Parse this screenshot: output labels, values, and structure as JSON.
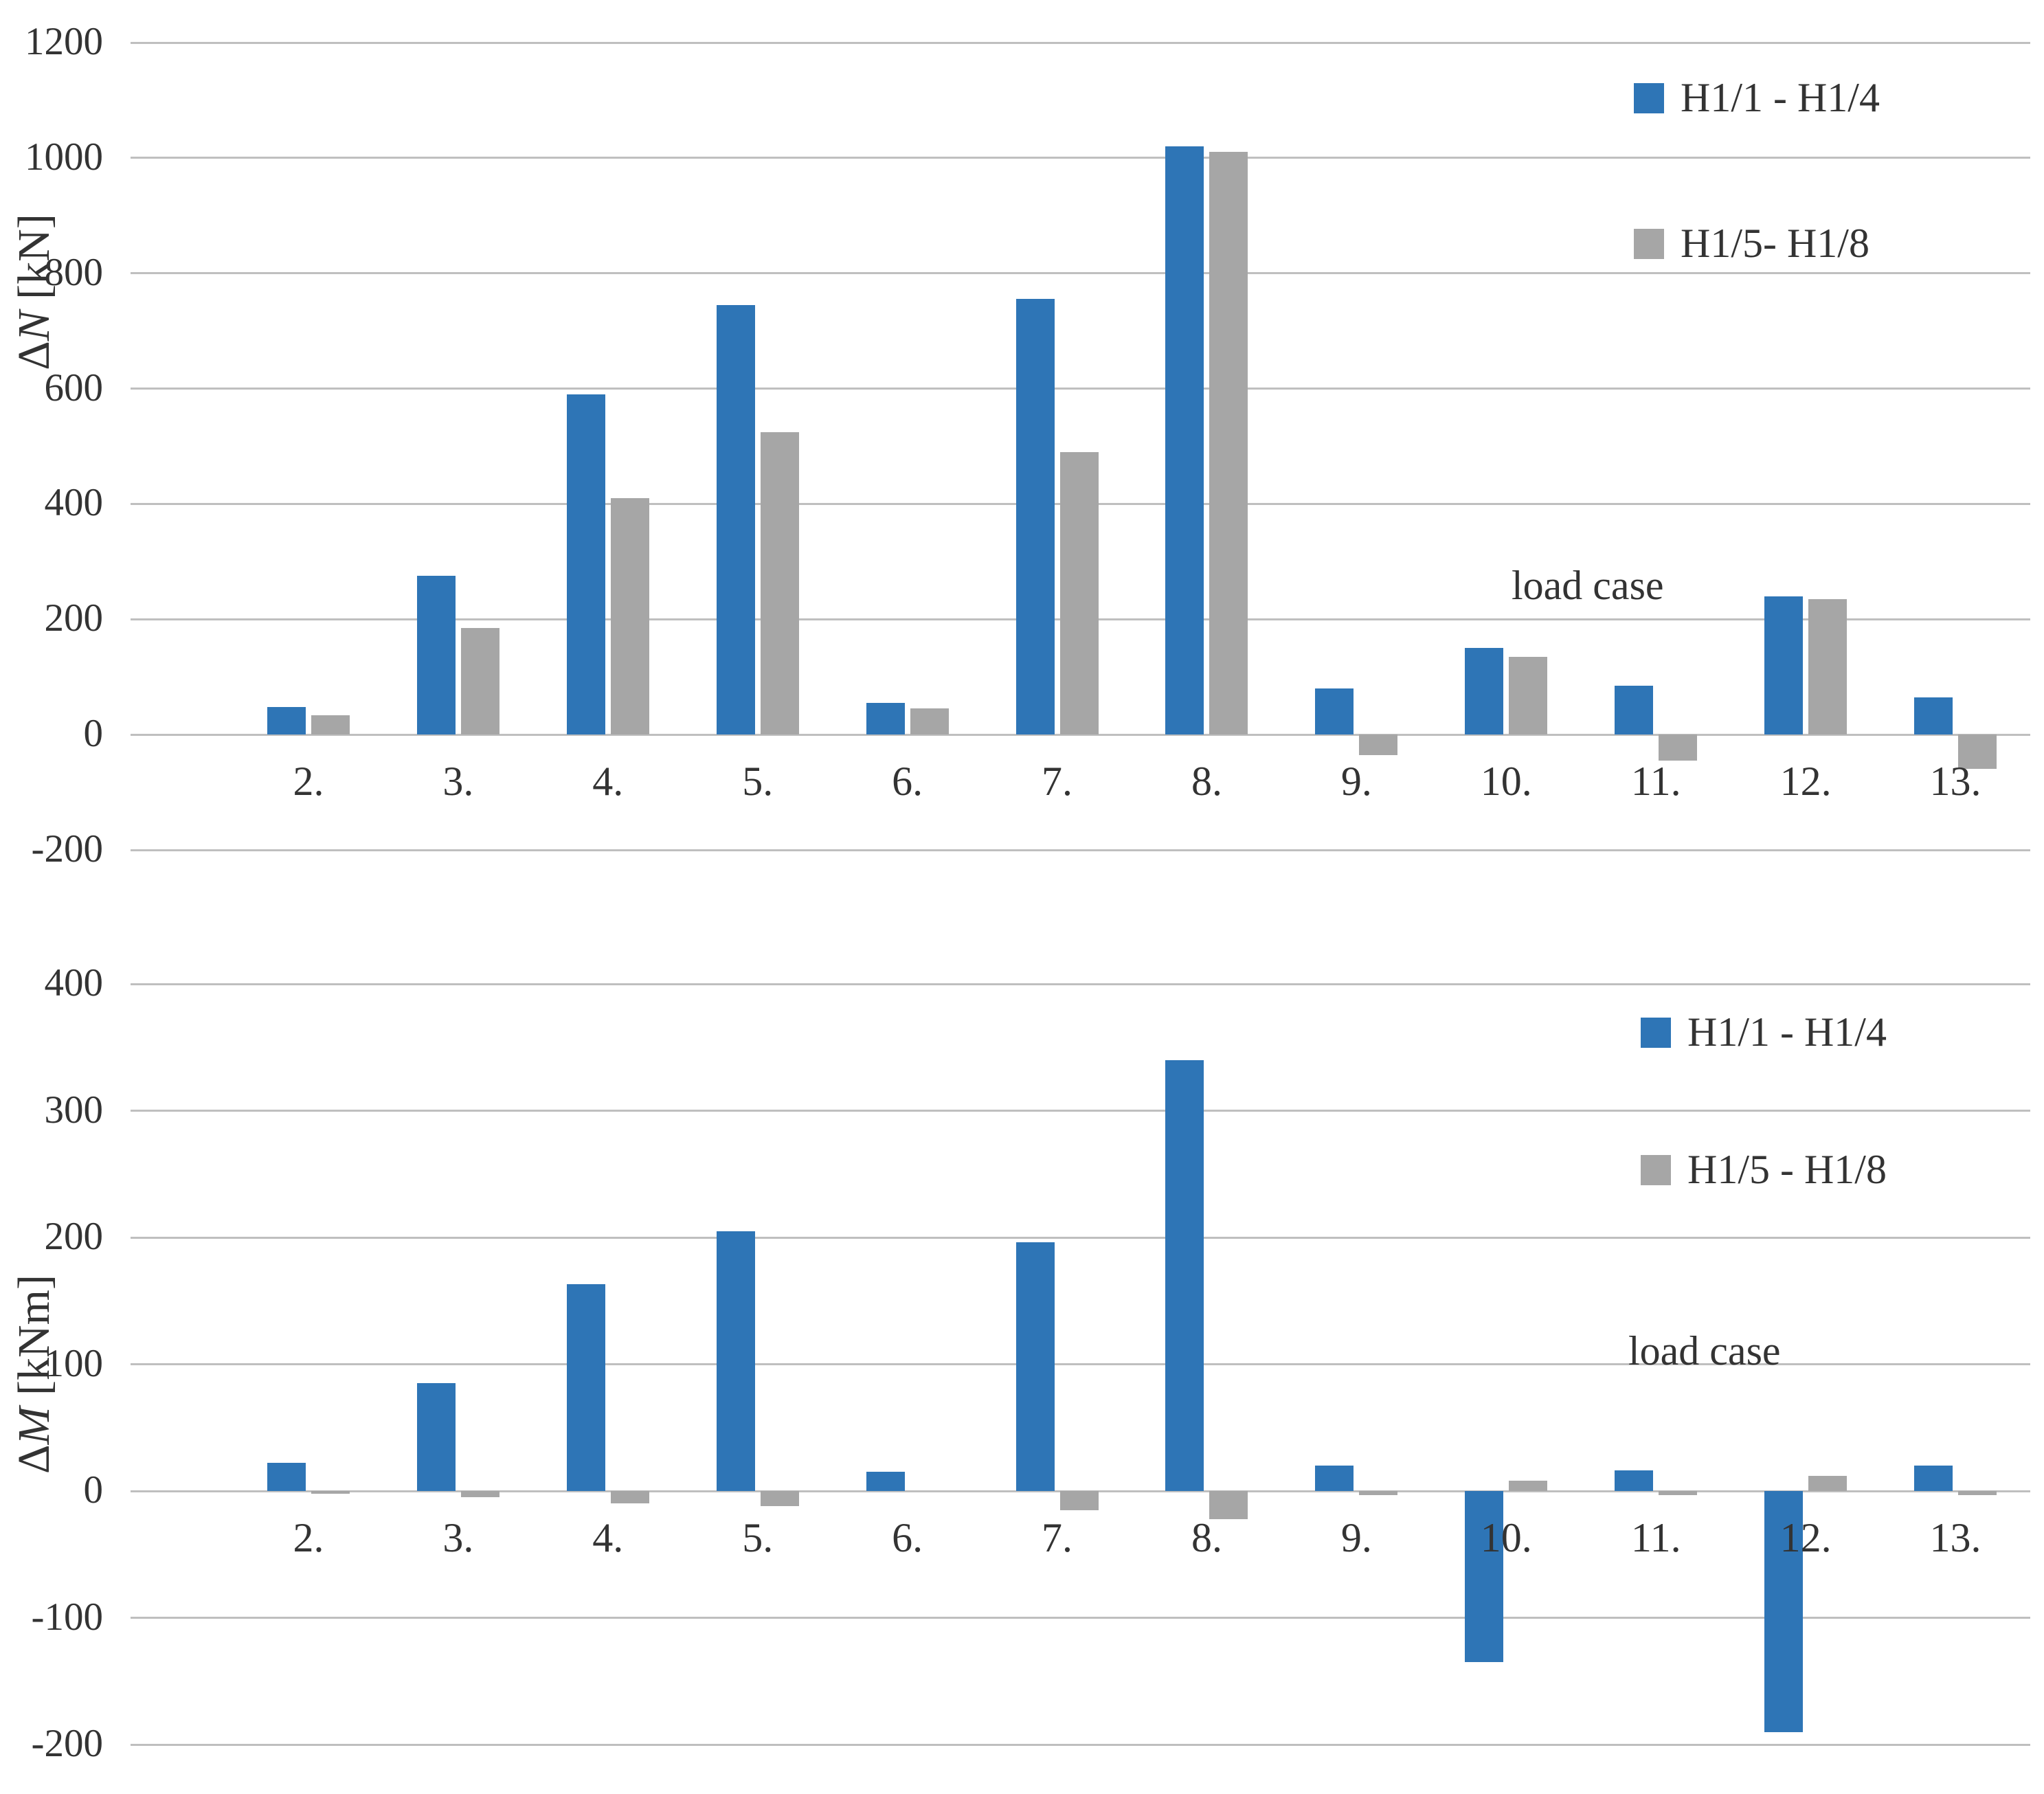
{
  "page": {
    "background": "#ffffff"
  },
  "chart_data": [
    {
      "type": "bar",
      "title": "",
      "ylabel": "ΔN [kN]",
      "ylabel_parts": [
        {
          "text": "Δ",
          "italic": false
        },
        {
          "text": "N",
          "italic": true
        },
        {
          "text": " [kN]",
          "italic": false
        }
      ],
      "xlabel": "load case",
      "categories": [
        "2.",
        "3.",
        "4.",
        "5.",
        "6.",
        "7.",
        "8.",
        "9.",
        "10.",
        "11.",
        "12.",
        "13."
      ],
      "series": [
        {
          "name": "H1/1 - H1/4",
          "color": "#2E75B6",
          "values": [
            48,
            275,
            590,
            745,
            55,
            755,
            1020,
            80,
            150,
            85,
            240,
            65
          ]
        },
        {
          "name": "H1/5- H1/8",
          "color": "#A6A6A6",
          "values": [
            33,
            185,
            410,
            525,
            45,
            490,
            1010,
            -35,
            135,
            -45,
            235,
            -60
          ]
        }
      ],
      "ylim": [
        -200,
        1200
      ],
      "ytick_step": 200,
      "yticks": [
        1200,
        1000,
        800,
        600,
        400,
        200,
        0,
        -200
      ],
      "grid": true,
      "legend_position": "top-right"
    },
    {
      "type": "bar",
      "title": "",
      "ylabel": "ΔM [kNm]",
      "ylabel_parts": [
        {
          "text": "Δ",
          "italic": false
        },
        {
          "text": "M",
          "italic": true
        },
        {
          "text": " [kNm]",
          "italic": false
        }
      ],
      "xlabel": "load case",
      "categories": [
        "2.",
        "3.",
        "4.",
        "5.",
        "6.",
        "7.",
        "8.",
        "9.",
        "10.",
        "11.",
        "12.",
        "13."
      ],
      "series": [
        {
          "name": "H1/1 - H1/4",
          "color": "#2E75B6",
          "values": [
            22,
            85,
            163,
            205,
            15,
            196,
            340,
            20,
            -135,
            16,
            -190,
            20
          ]
        },
        {
          "name": "H1/5 - H1/8",
          "color": "#A6A6A6",
          "values": [
            -2,
            -5,
            -10,
            -12,
            0,
            -15,
            -22,
            -3,
            8,
            -3,
            12,
            -3
          ]
        }
      ],
      "ylim": [
        -200,
        400
      ],
      "ytick_step": 100,
      "yticks": [
        400,
        300,
        200,
        100,
        0,
        -100,
        -200
      ],
      "grid": true,
      "legend_position": "top-right"
    }
  ]
}
